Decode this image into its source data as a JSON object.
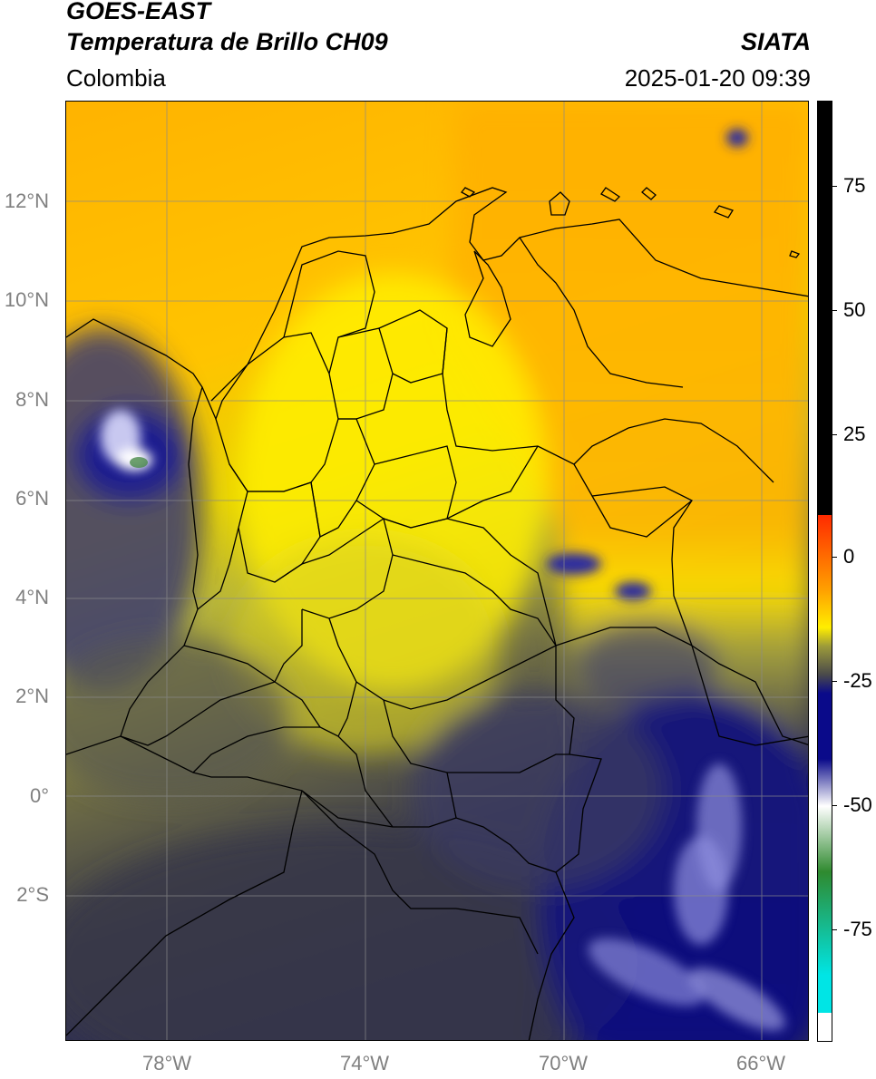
{
  "header": {
    "satellite": "GOES-EAST",
    "product": "Temperatura de Brillo CH09",
    "organization": "SIATA",
    "region": "Colombia",
    "timestamp": "2025-01-20 09:39"
  },
  "map": {
    "lon_range": [
      -80,
      -65
    ],
    "lat_range": [
      -5,
      14
    ],
    "lat_ticks": [
      "12°N",
      "10°N",
      "8°N",
      "6°N",
      "4°N",
      "2°N",
      "0°",
      "2°S"
    ],
    "lon_ticks": [
      "78°W",
      "74°W",
      "70°W",
      "66°W"
    ],
    "gridlines": true
  },
  "colorbar": {
    "ticks": [
      "75",
      "50",
      "25",
      "0",
      "-25",
      "-50",
      "-75"
    ],
    "colors": {
      "warm": "#000000",
      "red": "#ff2a00",
      "orange": "#ffa000",
      "yellow": "#ffee00",
      "olive": "#9c9a3a",
      "gray": "#4a4a4a",
      "navy": "#0a0a8a",
      "white": "#ffffff",
      "green": "#2f8a2f",
      "cyan": "#00e5e5"
    }
  }
}
